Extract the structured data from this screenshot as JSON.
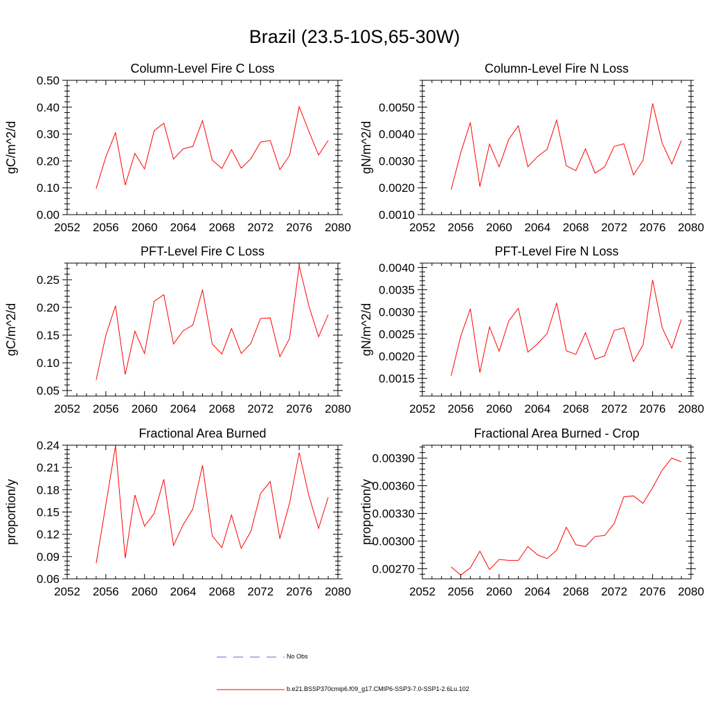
{
  "page": {
    "title": "Brazil (23.5-10S,65-30W)"
  },
  "colors": {
    "model": "#ff0000",
    "obs": "#6666cc",
    "axes": "#000000"
  },
  "legend": {
    "obs_label": "No Obs",
    "model_label": "b.e21.BSSP370cmip6.f09_g17.CMIP6-SSP3-7.0-SSP1-2.6Lu.102"
  },
  "chart_data": [
    {
      "type": "line",
      "title": "Column-Level Fire C Loss",
      "xlabel": "",
      "ylabel": "gC/m^2/d",
      "xlim": [
        2052,
        2080
      ],
      "ylim": [
        0.0,
        0.5
      ],
      "xticks": [
        "2052",
        "2056",
        "2060",
        "2064",
        "2068",
        "2072",
        "2076",
        "2080"
      ],
      "yticks": [
        "0.00",
        "0.10",
        "0.20",
        "0.30",
        "0.40",
        "0.50"
      ],
      "x": [
        2055,
        2056,
        2057,
        2058,
        2059,
        2060,
        2061,
        2062,
        2063,
        2064,
        2065,
        2066,
        2067,
        2068,
        2069,
        2070,
        2071,
        2072,
        2073,
        2074,
        2075,
        2076,
        2077,
        2078,
        2079
      ],
      "series": [
        {
          "values": [
            0.097,
            0.215,
            0.305,
            0.11,
            0.228,
            0.17,
            0.313,
            0.34,
            0.207,
            0.245,
            0.254,
            0.35,
            0.203,
            0.172,
            0.242,
            0.173,
            0.208,
            0.27,
            0.276,
            0.168,
            0.22,
            0.402,
            0.31,
            0.222,
            0.276
          ]
        }
      ]
    },
    {
      "type": "line",
      "title": "Column-Level Fire N Loss",
      "xlabel": "",
      "ylabel": "gN/m^2/d",
      "xlim": [
        2052,
        2080
      ],
      "ylim": [
        0.001,
        0.006
      ],
      "xticks": [
        "2052",
        "2056",
        "2060",
        "2064",
        "2068",
        "2072",
        "2076",
        "2080"
      ],
      "yticks": [
        "0.0010",
        "0.0020",
        "0.0030",
        "0.0040",
        "0.0050"
      ],
      "x": [
        2055,
        2056,
        2057,
        2058,
        2059,
        2060,
        2061,
        2062,
        2063,
        2064,
        2065,
        2066,
        2067,
        2068,
        2069,
        2070,
        2071,
        2072,
        2073,
        2074,
        2075,
        2076,
        2077,
        2078,
        2079
      ],
      "series": [
        {
          "values": [
            0.00193,
            0.0033,
            0.00443,
            0.00204,
            0.00362,
            0.00278,
            0.0038,
            0.00431,
            0.00278,
            0.00316,
            0.00343,
            0.00452,
            0.00282,
            0.00264,
            0.00345,
            0.00254,
            0.00278,
            0.00354,
            0.00364,
            0.00248,
            0.00302,
            0.00514,
            0.00366,
            0.00289,
            0.00376
          ]
        }
      ]
    },
    {
      "type": "line",
      "title": "PFT-Level Fire C Loss",
      "xlabel": "",
      "ylabel": "gC/m^2/d",
      "xlim": [
        2052,
        2080
      ],
      "ylim": [
        0.04,
        0.28
      ],
      "xticks": [
        "2052",
        "2056",
        "2060",
        "2064",
        "2068",
        "2072",
        "2076",
        "2080"
      ],
      "yticks": [
        "0.05",
        "0.10",
        "0.15",
        "0.20",
        "0.25"
      ],
      "x": [
        2055,
        2056,
        2057,
        2058,
        2059,
        2060,
        2061,
        2062,
        2063,
        2064,
        2065,
        2066,
        2067,
        2068,
        2069,
        2070,
        2071,
        2072,
        2073,
        2074,
        2075,
        2076,
        2077,
        2078,
        2079
      ],
      "series": [
        {
          "values": [
            0.069,
            0.15,
            0.203,
            0.079,
            0.157,
            0.117,
            0.211,
            0.223,
            0.134,
            0.158,
            0.168,
            0.232,
            0.134,
            0.116,
            0.162,
            0.117,
            0.135,
            0.18,
            0.181,
            0.111,
            0.144,
            0.275,
            0.203,
            0.147,
            0.187
          ]
        }
      ]
    },
    {
      "type": "line",
      "title": "PFT-Level Fire N Loss",
      "xlabel": "",
      "ylabel": "gN/m^2/d",
      "xlim": [
        2052,
        2080
      ],
      "ylim": [
        0.0011,
        0.0041
      ],
      "xticks": [
        "2052",
        "2056",
        "2060",
        "2064",
        "2068",
        "2072",
        "2076",
        "2080"
      ],
      "yticks": [
        "0.0015",
        "0.0020",
        "0.0025",
        "0.0030",
        "0.0035",
        "0.0040"
      ],
      "x": [
        2055,
        2056,
        2057,
        2058,
        2059,
        2060,
        2061,
        2062,
        2063,
        2064,
        2065,
        2066,
        2067,
        2068,
        2069,
        2070,
        2071,
        2072,
        2073,
        2074,
        2075,
        2076,
        2077,
        2078,
        2079
      ],
      "series": [
        {
          "values": [
            0.00156,
            0.00245,
            0.00307,
            0.00163,
            0.00266,
            0.00211,
            0.00279,
            0.00308,
            0.00209,
            0.00228,
            0.00251,
            0.0032,
            0.00212,
            0.00204,
            0.00253,
            0.00193,
            0.00201,
            0.00258,
            0.00264,
            0.00188,
            0.00225,
            0.00372,
            0.00264,
            0.00218,
            0.00283
          ]
        }
      ]
    },
    {
      "type": "line",
      "title": "Fractional Area Burned",
      "xlabel": "",
      "ylabel": "proportion/y",
      "xlim": [
        2052,
        2080
      ],
      "ylim": [
        0.06,
        0.24
      ],
      "xticks": [
        "2052",
        "2056",
        "2060",
        "2064",
        "2068",
        "2072",
        "2076",
        "2080"
      ],
      "yticks": [
        "0.06",
        "0.09",
        "0.12",
        "0.15",
        "0.18",
        "0.21",
        "0.24"
      ],
      "x": [
        2055,
        2056,
        2057,
        2058,
        2059,
        2060,
        2061,
        2062,
        2063,
        2064,
        2065,
        2066,
        2067,
        2068,
        2069,
        2070,
        2071,
        2072,
        2073,
        2074,
        2075,
        2076,
        2077,
        2078,
        2079
      ],
      "series": [
        {
          "values": [
            0.081,
            0.16,
            0.239,
            0.088,
            0.173,
            0.131,
            0.148,
            0.194,
            0.105,
            0.133,
            0.154,
            0.213,
            0.118,
            0.102,
            0.146,
            0.101,
            0.124,
            0.175,
            0.191,
            0.114,
            0.162,
            0.23,
            0.172,
            0.128,
            0.17
          ]
        }
      ]
    },
    {
      "type": "line",
      "title": "Fractional Area Burned - Crop",
      "xlabel": "",
      "ylabel": "proportion/y",
      "xlim": [
        2052,
        2080
      ],
      "ylim": [
        0.00259,
        0.00404
      ],
      "xticks": [
        "2052",
        "2056",
        "2060",
        "2064",
        "2068",
        "2072",
        "2076",
        "2080"
      ],
      "yticks": [
        "0.00270",
        "0.00300",
        "0.00330",
        "0.00360",
        "0.00390"
      ],
      "x": [
        2055,
        2056,
        2057,
        2058,
        2059,
        2060,
        2061,
        2062,
        2063,
        2064,
        2065,
        2066,
        2067,
        2068,
        2069,
        2070,
        2071,
        2072,
        2073,
        2074,
        2075,
        2076,
        2077,
        2078,
        2079
      ],
      "series": [
        {
          "values": [
            0.00272,
            0.00263,
            0.00271,
            0.00289,
            0.00269,
            0.0028,
            0.00279,
            0.00279,
            0.00294,
            0.00285,
            0.00281,
            0.0029,
            0.00315,
            0.00296,
            0.00294,
            0.00305,
            0.00306,
            0.00319,
            0.00348,
            0.00349,
            0.00341,
            0.00358,
            0.00377,
            0.0039,
            0.00386
          ]
        }
      ]
    }
  ]
}
